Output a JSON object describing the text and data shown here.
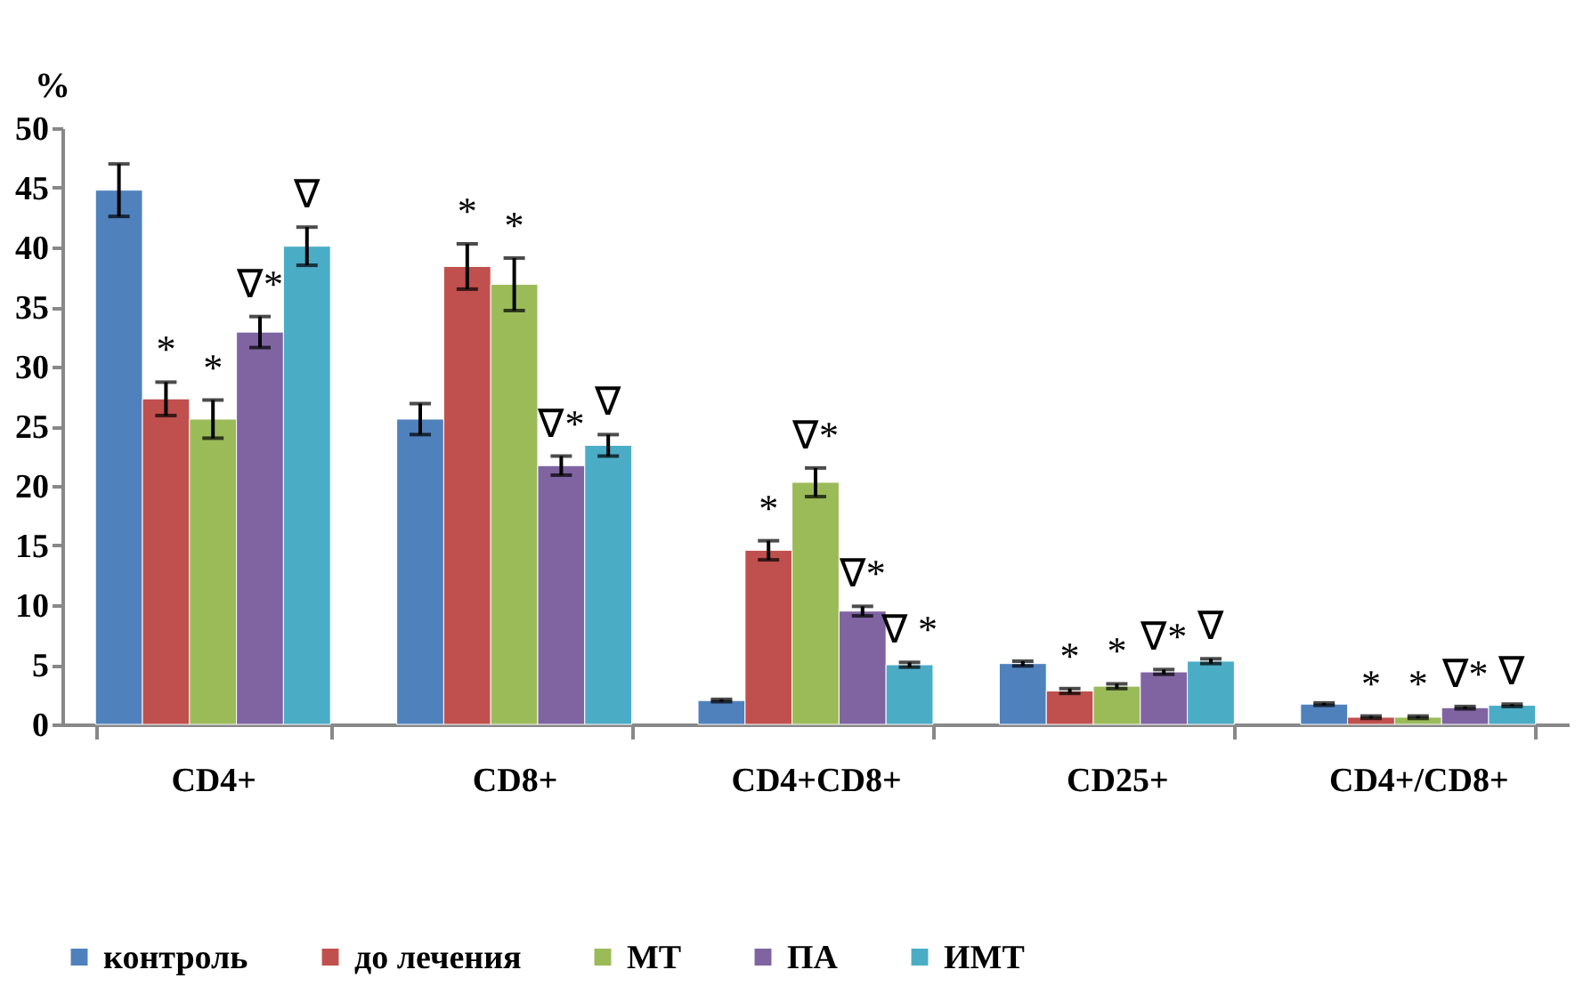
{
  "chart_data": {
    "type": "bar",
    "ylabel": "%",
    "categories": [
      "CD4+",
      "CD8+",
      "CD4+CD8+",
      "CD25+",
      "CD4+/CD8+"
    ],
    "series": [
      {
        "name": "контроль",
        "color": "#4f81bd",
        "values": [
          44.8,
          25.6,
          2.0,
          5.1,
          1.7
        ],
        "errors": [
          2.2,
          1.3,
          0.1,
          0.2,
          0.1
        ]
      },
      {
        "name": "до лечения",
        "color": "#c0504d",
        "values": [
          27.3,
          38.4,
          14.6,
          2.8,
          0.6
        ],
        "errors": [
          1.4,
          1.9,
          0.8,
          0.2,
          0.1
        ],
        "value_labels": [
          "*",
          "*",
          "*",
          "*",
          "*"
        ]
      },
      {
        "name": "МТ",
        "color": "#9bbb59",
        "values": [
          25.6,
          36.9,
          20.3,
          3.2,
          0.6
        ],
        "errors": [
          1.6,
          2.2,
          1.2,
          0.2,
          0.1
        ],
        "value_labels": [
          "*",
          "*",
          "∇*",
          "*",
          "*"
        ]
      },
      {
        "name": "ПА",
        "color": "#8064a2",
        "values": [
          32.9,
          21.7,
          9.5,
          4.4,
          1.4
        ],
        "errors": [
          1.3,
          0.8,
          0.4,
          0.2,
          0.1
        ],
        "value_labels": [
          "∇*",
          "∇*",
          "∇*",
          "∇*",
          "∇*"
        ]
      },
      {
        "name": "ИМТ",
        "color": "#4bacc6",
        "values": [
          40.1,
          23.4,
          5.0,
          5.3,
          1.6
        ],
        "errors": [
          1.6,
          0.9,
          0.2,
          0.2,
          0.1
        ],
        "value_labels": [
          "∇",
          "∇",
          "∇ *",
          "∇",
          "∇"
        ]
      }
    ],
    "ylim": [
      0,
      50
    ],
    "yticks": [
      0,
      5,
      10,
      15,
      20,
      25,
      30,
      35,
      40,
      45,
      50
    ],
    "grid": false,
    "legend": "bottom"
  }
}
